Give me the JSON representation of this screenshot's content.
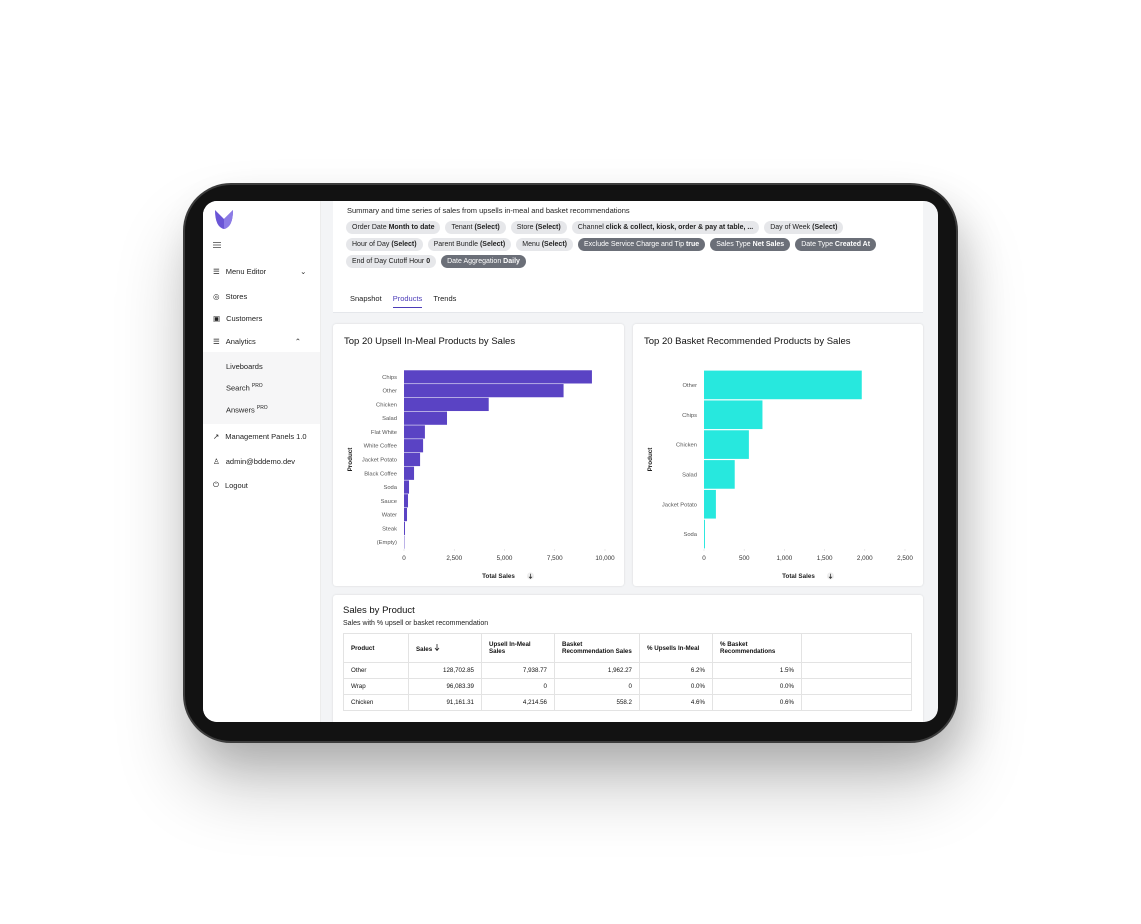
{
  "sidebar": {
    "items": [
      "Menu Editor",
      "Stores",
      "Customers",
      "Analytics",
      "Management Panels 1.0",
      "admin@bddemo.dev",
      "Logout"
    ],
    "analytics_items": [
      {
        "label": "Liveboards"
      },
      {
        "label": "Search",
        "badge": "PRO"
      },
      {
        "label": "Answers",
        "badge": "PRO"
      }
    ]
  },
  "header": {
    "description": "Summary and time series of sales from upsells in-meal and basket recommendations"
  },
  "filters": [
    {
      "label": "Order Date",
      "value": "Month to date"
    },
    {
      "label": "Tenant",
      "value": "(Select)"
    },
    {
      "label": "Store",
      "value": "(Select)"
    },
    {
      "label": "Channel",
      "value": "click & collect, kiosk, order & pay at table, ..."
    },
    {
      "label": "Day of Week",
      "value": "(Select)"
    },
    {
      "label": "Hour of Day",
      "value": "(Select)"
    },
    {
      "label": "Parent Bundle",
      "value": "(Select)"
    },
    {
      "label": "Menu",
      "value": "(Select)"
    },
    {
      "label": "Exclude Service Charge and Tip",
      "value": "true",
      "active": true
    },
    {
      "label": "Sales Type",
      "value": "Net Sales",
      "active": true
    },
    {
      "label": "Date Type",
      "value": "Created At",
      "active": true
    },
    {
      "label": "End of Day Cutoff Hour",
      "value": "0"
    },
    {
      "label": "Date Aggregation",
      "value": "Daily",
      "active": true
    }
  ],
  "tabs": [
    "Snapshot",
    "Products",
    "Trends"
  ],
  "chart_data": [
    {
      "type": "bar",
      "orientation": "horizontal",
      "title": "Top 20 Upsell In-Meal Products by Sales",
      "x_label": "Total Sales",
      "y_label": "Product",
      "color": "#5a43c4",
      "categories": [
        "Chips",
        "Other",
        "Chicken",
        "Salad",
        "Flat White",
        "White Coffee",
        "Jacket Potato",
        "Black Coffee",
        "Soda",
        "Sauce",
        "Water",
        "Steak",
        "(Empty)"
      ],
      "values": [
        9350,
        7938.77,
        4214.56,
        2140,
        1040,
        950,
        800,
        500,
        250,
        200,
        150,
        50,
        20
      ],
      "xlim": [
        0,
        10000
      ],
      "xticks": [
        0,
        {
          "value": 2500,
          "label": "2,500"
        },
        {
          "value": 5000,
          "label": "5,000"
        },
        {
          "value": 7500,
          "label": "7,500"
        },
        {
          "value": 10000,
          "label": "10,000"
        }
      ]
    },
    {
      "type": "bar",
      "orientation": "horizontal",
      "title": "Top 20 Basket Recommended Products by Sales",
      "x_label": "Total Sales",
      "y_label": "Product",
      "color": "#27e8de",
      "categories": [
        "Other",
        "Chips",
        "Chicken",
        "Salad",
        "Jacket Potato",
        "Soda"
      ],
      "values": [
        1962.27,
        727,
        558.2,
        382,
        148,
        12
      ],
      "xlim": [
        0,
        2500
      ],
      "xticks": [
        0,
        500,
        {
          "value": 1000,
          "label": "1,000"
        },
        {
          "value": 1500,
          "label": "1,500"
        },
        {
          "value": 2000,
          "label": "2,000"
        },
        {
          "value": 2500,
          "label": "2,500"
        }
      ]
    }
  ],
  "table": {
    "title": "Sales by Product",
    "subtitle": "Sales with % upsell or basket recommendation",
    "columns": [
      "Product",
      "Sales",
      "Upsell In-Meal Sales",
      "Basket Recommendation Sales",
      "% Upsells In-Meal",
      "% Basket Recommendations"
    ],
    "rows": [
      [
        "Other",
        "128,702.85",
        "7,938.77",
        "1,962.27",
        "6.2%",
        "1.5%"
      ],
      [
        "Wrap",
        "96,083.39",
        "0",
        "0",
        "0.0%",
        "0.0%"
      ],
      [
        "Chicken",
        "91,161.31",
        "4,214.56",
        "558.2",
        "4.6%",
        "0.6%"
      ]
    ]
  }
}
